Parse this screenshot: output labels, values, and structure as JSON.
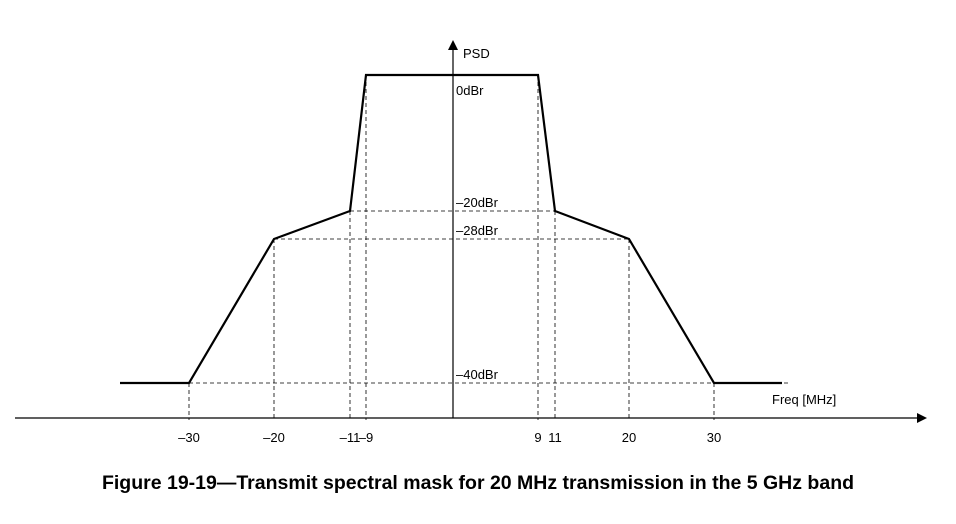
{
  "caption": "Figure 19-19—Transmit spectral mask for 20 MHz transmission in the 5 GHz band",
  "chart_data": {
    "type": "line",
    "title": "",
    "xlabel": "Freq [MHz]",
    "ylabel": "PSD",
    "series": [
      {
        "x": [
          -38,
          -30,
          -20,
          -11,
          -9,
          9,
          11,
          20,
          30,
          38
        ],
        "y": [
          -40,
          -40,
          -28,
          -20,
          0,
          0,
          -20,
          -28,
          -40,
          -40
        ]
      }
    ],
    "x_ticks": [
      {
        "value": -30,
        "label": "–30"
      },
      {
        "value": -20,
        "label": "–20"
      },
      {
        "value": -11,
        "label": "–11"
      },
      {
        "value": -9,
        "label": "–9"
      },
      {
        "value": 9,
        "label": "9"
      },
      {
        "value": 11,
        "label": "11"
      },
      {
        "value": 20,
        "label": "20"
      },
      {
        "value": 30,
        "label": "30"
      }
    ],
    "y_levels": [
      {
        "value": 0,
        "label": "0dBr"
      },
      {
        "value": -20,
        "label": "–20dBr"
      },
      {
        "value": -28,
        "label": "–28dBr"
      },
      {
        "value": -40,
        "label": "–40dBr"
      }
    ],
    "xlim": [
      -51,
      57
    ],
    "ylim": [
      -40,
      0
    ],
    "grid": false,
    "legend": "none"
  }
}
